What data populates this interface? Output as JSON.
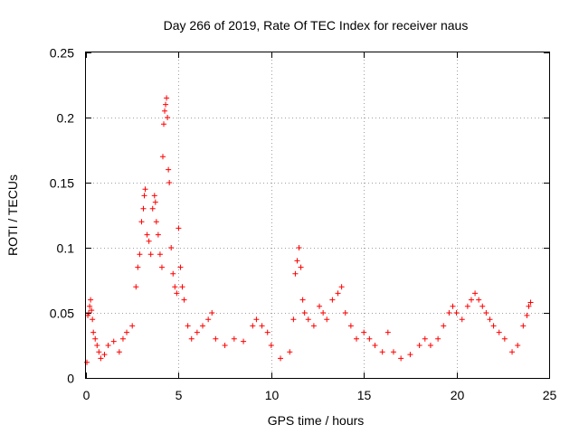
{
  "chart_data": {
    "type": "scatter",
    "title": "Day 266 of 2019, Rate Of TEC Index for receiver naus",
    "xlabel": "GPS time / hours",
    "ylabel": "ROTI / TECUs",
    "xlim": [
      0,
      25
    ],
    "ylim": [
      0,
      0.25
    ],
    "x_ticks": [
      0,
      5,
      10,
      15,
      20,
      25
    ],
    "x_tick_labels": [
      "0",
      "5",
      "10",
      "15",
      "20",
      "25"
    ],
    "y_ticks": [
      0,
      0.05,
      0.1,
      0.15,
      0.2,
      0.25
    ],
    "y_tick_labels": [
      "0",
      "0.05",
      "0.1",
      "0.15",
      "0.2",
      "0.25"
    ],
    "grid": true,
    "marker": "+",
    "color": "#ff0000",
    "series": [
      {
        "name": "ROTI",
        "description": "Dense scatter of ROTI samples over the day; baseline about 0.01-0.03 TECU/min, storm peak near 3-4.5 h reaching ~0.215, secondary bursts near 11.5 h (~0.10) and 20-21 h (~0.065).",
        "points": [
          [
            0.05,
            0.012
          ],
          [
            0.1,
            0.048
          ],
          [
            0.15,
            0.05
          ],
          [
            0.2,
            0.055
          ],
          [
            0.25,
            0.06
          ],
          [
            0.3,
            0.052
          ],
          [
            0.35,
            0.045
          ],
          [
            0.4,
            0.035
          ],
          [
            0.5,
            0.03
          ],
          [
            0.6,
            0.025
          ],
          [
            0.7,
            0.02
          ],
          [
            0.8,
            0.015
          ],
          [
            1.0,
            0.018
          ],
          [
            1.2,
            0.025
          ],
          [
            1.5,
            0.028
          ],
          [
            1.8,
            0.02
          ],
          [
            2.0,
            0.03
          ],
          [
            2.2,
            0.035
          ],
          [
            2.5,
            0.04
          ],
          [
            2.7,
            0.07
          ],
          [
            2.8,
            0.085
          ],
          [
            2.9,
            0.095
          ],
          [
            3.0,
            0.12
          ],
          [
            3.1,
            0.13
          ],
          [
            3.15,
            0.14
          ],
          [
            3.2,
            0.145
          ],
          [
            3.3,
            0.11
          ],
          [
            3.4,
            0.105
          ],
          [
            3.5,
            0.095
          ],
          [
            3.6,
            0.13
          ],
          [
            3.7,
            0.14
          ],
          [
            3.75,
            0.135
          ],
          [
            3.8,
            0.12
          ],
          [
            3.9,
            0.11
          ],
          [
            4.0,
            0.095
          ],
          [
            4.1,
            0.085
          ],
          [
            4.15,
            0.17
          ],
          [
            4.2,
            0.195
          ],
          [
            4.25,
            0.205
          ],
          [
            4.3,
            0.21
          ],
          [
            4.35,
            0.215
          ],
          [
            4.4,
            0.2
          ],
          [
            4.45,
            0.16
          ],
          [
            4.5,
            0.15
          ],
          [
            4.6,
            0.1
          ],
          [
            4.7,
            0.08
          ],
          [
            4.8,
            0.07
          ],
          [
            4.9,
            0.065
          ],
          [
            5.0,
            0.115
          ],
          [
            5.1,
            0.085
          ],
          [
            5.2,
            0.07
          ],
          [
            5.3,
            0.06
          ],
          [
            5.5,
            0.04
          ],
          [
            5.7,
            0.03
          ],
          [
            6.0,
            0.035
          ],
          [
            6.3,
            0.04
          ],
          [
            6.6,
            0.045
          ],
          [
            6.8,
            0.05
          ],
          [
            7.0,
            0.03
          ],
          [
            7.5,
            0.025
          ],
          [
            8.0,
            0.03
          ],
          [
            8.5,
            0.028
          ],
          [
            9.0,
            0.04
          ],
          [
            9.2,
            0.045
          ],
          [
            9.5,
            0.04
          ],
          [
            9.8,
            0.035
          ],
          [
            10.0,
            0.025
          ],
          [
            10.5,
            0.015
          ],
          [
            11.0,
            0.02
          ],
          [
            11.2,
            0.045
          ],
          [
            11.3,
            0.08
          ],
          [
            11.4,
            0.09
          ],
          [
            11.5,
            0.1
          ],
          [
            11.6,
            0.085
          ],
          [
            11.7,
            0.06
          ],
          [
            11.8,
            0.05
          ],
          [
            12.0,
            0.045
          ],
          [
            12.3,
            0.04
          ],
          [
            12.6,
            0.055
          ],
          [
            12.8,
            0.05
          ],
          [
            13.0,
            0.045
          ],
          [
            13.3,
            0.06
          ],
          [
            13.6,
            0.065
          ],
          [
            13.8,
            0.07
          ],
          [
            14.0,
            0.05
          ],
          [
            14.3,
            0.04
          ],
          [
            14.6,
            0.03
          ],
          [
            15.0,
            0.035
          ],
          [
            15.3,
            0.03
          ],
          [
            15.6,
            0.025
          ],
          [
            16.0,
            0.02
          ],
          [
            16.3,
            0.035
          ],
          [
            16.6,
            0.02
          ],
          [
            17.0,
            0.015
          ],
          [
            17.5,
            0.018
          ],
          [
            18.0,
            0.025
          ],
          [
            18.3,
            0.03
          ],
          [
            18.6,
            0.025
          ],
          [
            19.0,
            0.03
          ],
          [
            19.3,
            0.04
          ],
          [
            19.6,
            0.05
          ],
          [
            19.8,
            0.055
          ],
          [
            20.0,
            0.05
          ],
          [
            20.3,
            0.045
          ],
          [
            20.6,
            0.055
          ],
          [
            20.8,
            0.06
          ],
          [
            21.0,
            0.065
          ],
          [
            21.2,
            0.06
          ],
          [
            21.4,
            0.055
          ],
          [
            21.6,
            0.05
          ],
          [
            21.8,
            0.045
          ],
          [
            22.0,
            0.04
          ],
          [
            22.3,
            0.035
          ],
          [
            22.6,
            0.03
          ],
          [
            23.0,
            0.02
          ],
          [
            23.3,
            0.025
          ],
          [
            23.6,
            0.04
          ],
          [
            23.8,
            0.048
          ],
          [
            23.9,
            0.055
          ],
          [
            24.0,
            0.058
          ]
        ]
      }
    ]
  }
}
